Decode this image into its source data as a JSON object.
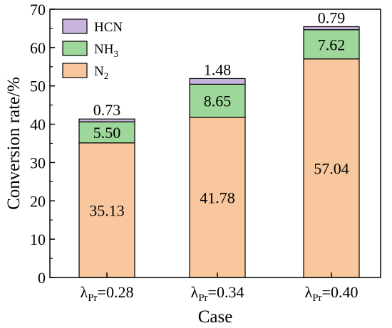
{
  "chart_data": {
    "type": "bar",
    "stacked": true,
    "categories": [
      {
        "symbol": "λ",
        "sub": "Pr",
        "value": "=0.28"
      },
      {
        "symbol": "λ",
        "sub": "Pr",
        "value": "=0.34"
      },
      {
        "symbol": "λ",
        "sub": "Pr",
        "value": "=0.40"
      }
    ],
    "series": [
      {
        "name": "N",
        "sub": "2",
        "color": "#f8c79d",
        "values": [
          35.13,
          41.78,
          57.04
        ],
        "labels": [
          "35.13",
          "41.78",
          "57.04"
        ]
      },
      {
        "name": "NH",
        "sub": "3",
        "color": "#9ed79a",
        "values": [
          5.5,
          8.65,
          7.62
        ],
        "labels": [
          "5.50",
          "8.65",
          "7.62"
        ]
      },
      {
        "name": "HCN",
        "sub": "",
        "color": "#c8b4dc",
        "values": [
          0.73,
          1.48,
          0.79
        ],
        "labels": [
          "0.73",
          "1.48",
          "0.79"
        ]
      }
    ],
    "legend_order": [
      2,
      1,
      0
    ],
    "xlabel": "Case",
    "ylabel": "Conversion rate/%",
    "ylim": [
      0,
      70
    ],
    "yticks": [
      0,
      10,
      20,
      30,
      40,
      50,
      60,
      70
    ],
    "legend_position": "top-left",
    "grid": false
  }
}
